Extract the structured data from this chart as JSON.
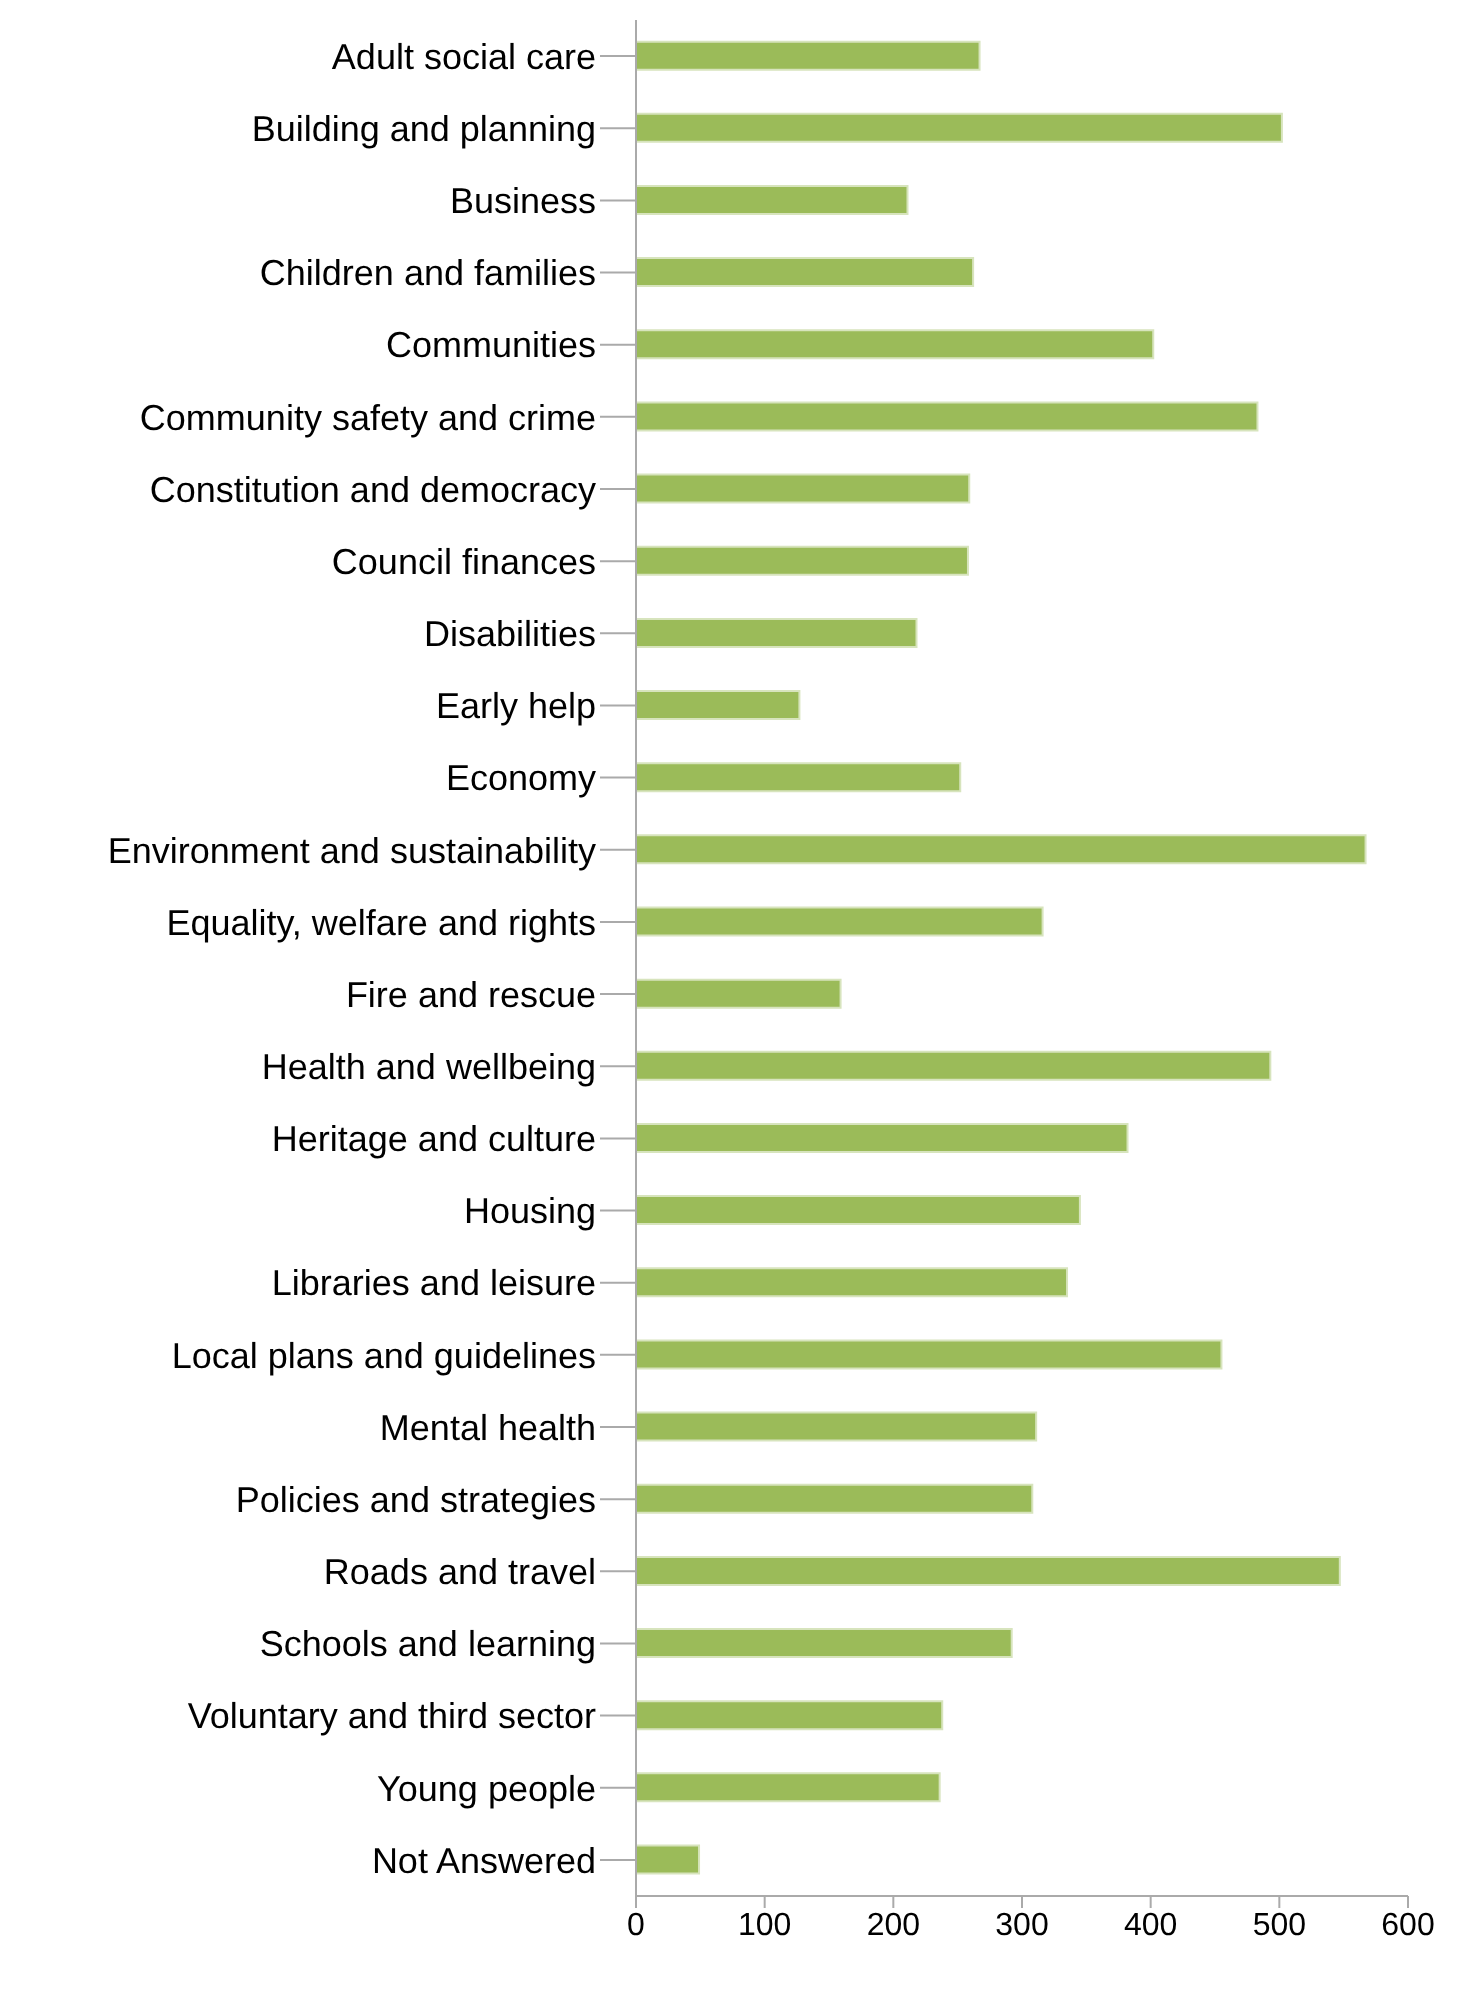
{
  "chart_data": {
    "type": "bar",
    "orientation": "horizontal",
    "categories": [
      "Adult social care",
      "Building and planning",
      "Business",
      "Children and families",
      "Communities",
      "Community safety and crime",
      "Constitution and democracy",
      "Council finances",
      "Disabilities",
      "Early help",
      "Economy",
      "Environment and sustainability",
      "Equality, welfare and rights",
      "Fire and rescue",
      "Health and wellbeing",
      "Heritage and culture",
      "Housing",
      "Libraries and leisure",
      "Local plans and guidelines",
      "Mental health",
      "Policies and strategies",
      "Roads and travel",
      "Schools and learning",
      "Voluntary and third sector",
      "Young people",
      "Not Answered"
    ],
    "values": [
      267,
      502,
      211,
      262,
      402,
      483,
      259,
      258,
      218,
      127,
      252,
      567,
      316,
      159,
      493,
      382,
      345,
      335,
      455,
      311,
      308,
      547,
      292,
      238,
      236,
      49
    ],
    "color": "#9bbb59",
    "xlim": [
      0,
      600
    ],
    "xticks": [
      0,
      100,
      200,
      300,
      400,
      500,
      600
    ],
    "grid": false,
    "legend": false
  }
}
